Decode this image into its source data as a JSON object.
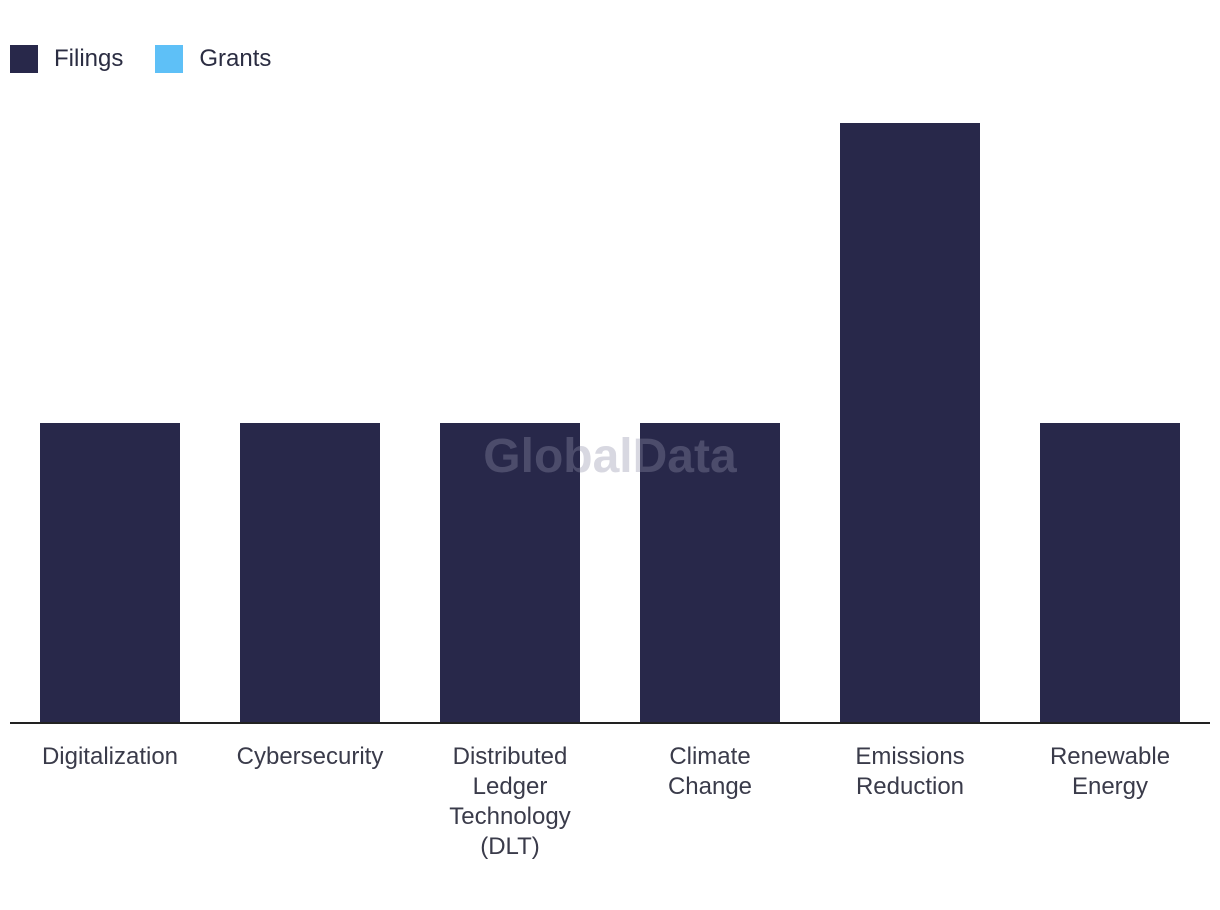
{
  "legend": {
    "items": [
      {
        "label": "Filings",
        "color": "#28284a"
      },
      {
        "label": "Grants",
        "color": "#5ec0f7"
      }
    ]
  },
  "watermark": "GlobalData",
  "chart_data": {
    "type": "bar",
    "categories": [
      [
        "Digitalization"
      ],
      [
        "Cybersecurity"
      ],
      [
        "Distributed",
        "Ledger",
        "Technology",
        "(DLT)"
      ],
      [
        "Climate",
        "Change"
      ],
      [
        "Emissions",
        "Reduction"
      ],
      [
        "Renewable",
        "Energy"
      ]
    ],
    "series": [
      {
        "name": "Filings",
        "color": "#28284a",
        "values": [
          1,
          1,
          1,
          1,
          2,
          1
        ]
      },
      {
        "name": "Grants",
        "color": "#5ec0f7",
        "values": [
          0,
          0,
          0,
          0,
          0,
          0
        ]
      }
    ],
    "ylim": [
      0,
      2.2
    ],
    "grid": false,
    "legend_position": "top-left"
  }
}
